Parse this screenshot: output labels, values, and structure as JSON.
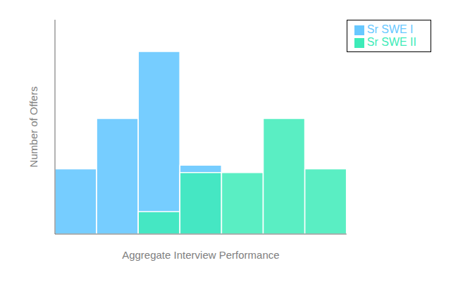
{
  "chart_data": {
    "type": "bar",
    "xlabel": "Aggregate Interview Performance",
    "ylabel": "Number of Offers",
    "categories": [
      null,
      null,
      null,
      null,
      null,
      null,
      null
    ],
    "series": [
      {
        "name": "Sr SWE I",
        "color": "#67C8FF",
        "values": [
          3.5,
          6.2,
          9.8,
          3.7,
          null,
          null,
          null
        ]
      },
      {
        "name": "Sr SWE II",
        "color": "#3DEBB8",
        "values": [
          null,
          null,
          1.2,
          3.3,
          3.3,
          6.2,
          3.5
        ]
      }
    ],
    "ylim": [
      0,
      11.5
    ],
    "tick_labels": false,
    "legend": "upper right"
  }
}
